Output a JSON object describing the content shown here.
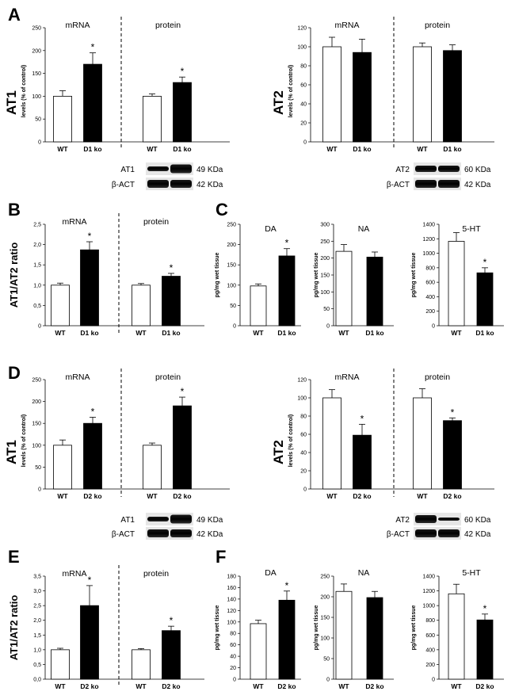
{
  "panel_labels": [
    "A",
    "B",
    "C",
    "D",
    "E",
    "F"
  ],
  "chart_data": [
    {
      "id": "A-AT1",
      "panel": "A",
      "type": "bar",
      "ylabel_main": "AT1",
      "ylabel_sub": "levels (% of control)",
      "ylim": [
        0,
        250
      ],
      "yticks": [
        "0",
        "50",
        "100",
        "150",
        "200",
        "250"
      ],
      "groups": [
        {
          "title": "mRNA",
          "categories": [
            "WT",
            "D1 ko"
          ],
          "values": [
            100,
            170
          ],
          "errors": [
            12,
            25
          ],
          "significant": [
            false,
            true
          ]
        },
        {
          "title": "protein",
          "categories": [
            "WT",
            "D1 ko"
          ],
          "values": [
            100,
            130
          ],
          "errors": [
            5,
            12
          ],
          "significant": [
            false,
            true
          ]
        }
      ]
    },
    {
      "id": "A-AT2",
      "panel": "A",
      "type": "bar",
      "ylabel_main": "AT2",
      "ylabel_sub": "levels (% of control)",
      "ylim": [
        0,
        120
      ],
      "yticks": [
        "0",
        "20",
        "40",
        "60",
        "80",
        "100",
        "120"
      ],
      "groups": [
        {
          "title": "mRNA",
          "categories": [
            "WT",
            "D1 ko"
          ],
          "values": [
            100,
            94
          ],
          "errors": [
            10,
            14
          ],
          "significant": [
            false,
            false
          ]
        },
        {
          "title": "protein",
          "categories": [
            "WT",
            "D1 ko"
          ],
          "values": [
            100,
            96
          ],
          "errors": [
            4,
            6
          ],
          "significant": [
            false,
            false
          ]
        }
      ]
    },
    {
      "id": "B",
      "panel": "B",
      "type": "bar",
      "ylabel_main": "AT1/AT2 ratio",
      "ylabel_sub": "",
      "ylim": [
        0,
        2.5
      ],
      "yticks": [
        "0",
        "0,5",
        "1,0",
        "1,5",
        "2,0",
        "2,5"
      ],
      "groups": [
        {
          "title": "mRNA",
          "categories": [
            "WT",
            "D1 ko"
          ],
          "values": [
            1.0,
            1.87
          ],
          "errors": [
            0.05,
            0.2
          ],
          "significant": [
            false,
            true
          ]
        },
        {
          "title": "protein",
          "categories": [
            "WT",
            "D1 ko"
          ],
          "values": [
            1.0,
            1.22
          ],
          "errors": [
            0.04,
            0.07
          ],
          "significant": [
            false,
            true
          ]
        }
      ]
    },
    {
      "id": "C-DA",
      "panel": "C",
      "type": "bar",
      "title": "DA",
      "ylabel_main": "",
      "ylabel_sub": "pg/mg wet tissue",
      "ylim": [
        0,
        250
      ],
      "yticks": [
        "0",
        "50",
        "100",
        "150",
        "200",
        "250"
      ],
      "groups": [
        {
          "title": "",
          "categories": [
            "WT",
            "D1 ko"
          ],
          "values": [
            98,
            172
          ],
          "errors": [
            5,
            18
          ],
          "significant": [
            false,
            true
          ]
        }
      ]
    },
    {
      "id": "C-NA",
      "panel": "C",
      "type": "bar",
      "title": "NA",
      "ylabel_main": "",
      "ylabel_sub": "pg/mg wet tissue",
      "ylim": [
        0,
        300
      ],
      "yticks": [
        "0",
        "50",
        "100",
        "150",
        "200",
        "250",
        "300"
      ],
      "groups": [
        {
          "title": "",
          "categories": [
            "WT",
            "D1 ko"
          ],
          "values": [
            220,
            203
          ],
          "errors": [
            20,
            15
          ],
          "significant": [
            false,
            false
          ]
        }
      ]
    },
    {
      "id": "C-5HT",
      "panel": "C",
      "type": "bar",
      "title": "5-HT",
      "ylabel_main": "",
      "ylabel_sub": "pg/mg wet tissue",
      "ylim": [
        0,
        1400
      ],
      "yticks": [
        "0",
        "200",
        "400",
        "600",
        "800",
        "1000",
        "1200",
        "1400"
      ],
      "groups": [
        {
          "title": "",
          "categories": [
            "WT",
            "D1 ko"
          ],
          "values": [
            1165,
            730
          ],
          "errors": [
            120,
            70
          ],
          "significant": [
            false,
            true
          ]
        }
      ]
    },
    {
      "id": "D-AT1",
      "panel": "D",
      "type": "bar",
      "ylabel_main": "AT1",
      "ylabel_sub": "levels (% of control)",
      "ylim": [
        0,
        250
      ],
      "yticks": [
        "0",
        "50",
        "100",
        "150",
        "200",
        "250"
      ],
      "groups": [
        {
          "title": "mRNA",
          "categories": [
            "WT",
            "D2 ko"
          ],
          "values": [
            100,
            150
          ],
          "errors": [
            12,
            14
          ],
          "significant": [
            false,
            true
          ]
        },
        {
          "title": "protein",
          "categories": [
            "WT",
            "D2 ko"
          ],
          "values": [
            100,
            190
          ],
          "errors": [
            5,
            20
          ],
          "significant": [
            false,
            true
          ]
        }
      ]
    },
    {
      "id": "D-AT2",
      "panel": "D",
      "type": "bar",
      "ylabel_main": "AT2",
      "ylabel_sub": "levels (% of control)",
      "ylim": [
        0,
        120
      ],
      "yticks": [
        "0",
        "20",
        "40",
        "60",
        "80",
        "100",
        "120"
      ],
      "groups": [
        {
          "title": "mRNA",
          "categories": [
            "WT",
            "D2 ko"
          ],
          "values": [
            100,
            59
          ],
          "errors": [
            9,
            12
          ],
          "significant": [
            false,
            true
          ]
        },
        {
          "title": "protein",
          "categories": [
            "WT",
            "D2 ko"
          ],
          "values": [
            100,
            75
          ],
          "errors": [
            10,
            3
          ],
          "significant": [
            false,
            true
          ]
        }
      ]
    },
    {
      "id": "E",
      "panel": "E",
      "type": "bar",
      "ylabel_main": "AT1/AT2 ratio",
      "ylabel_sub": "",
      "ylim": [
        0,
        3.5
      ],
      "yticks": [
        "0,0",
        "0,5",
        "1,0",
        "1,5",
        "2,0",
        "2,5",
        "3,0",
        "3,5"
      ],
      "groups": [
        {
          "title": "mRNA",
          "categories": [
            "WT",
            "D2 ko"
          ],
          "values": [
            1.0,
            2.5
          ],
          "errors": [
            0.05,
            0.68
          ],
          "significant": [
            false,
            true
          ]
        },
        {
          "title": "protein",
          "categories": [
            "WT",
            "D2 ko"
          ],
          "values": [
            1.0,
            1.65
          ],
          "errors": [
            0.04,
            0.15
          ],
          "significant": [
            false,
            true
          ]
        }
      ]
    },
    {
      "id": "F-DA",
      "panel": "F",
      "type": "bar",
      "title": "DA",
      "ylabel_main": "",
      "ylabel_sub": "pg/mg wet tissue",
      "ylim": [
        0,
        180
      ],
      "yticks": [
        "0",
        "20",
        "40",
        "60",
        "80",
        "100",
        "120",
        "140",
        "160",
        "180"
      ],
      "groups": [
        {
          "title": "",
          "categories": [
            "WT",
            "D2 ko"
          ],
          "values": [
            97,
            138
          ],
          "errors": [
            6,
            16
          ],
          "significant": [
            false,
            true
          ]
        }
      ]
    },
    {
      "id": "F-NA",
      "panel": "F",
      "type": "bar",
      "title": "NA",
      "ylabel_main": "",
      "ylabel_sub": "pg/mg wet tissue",
      "ylim": [
        0,
        250
      ],
      "yticks": [
        "0",
        "50",
        "100",
        "150",
        "200",
        "250"
      ],
      "groups": [
        {
          "title": "",
          "categories": [
            "WT",
            "D2 ko"
          ],
          "values": [
            213,
            198
          ],
          "errors": [
            18,
            15
          ],
          "significant": [
            false,
            false
          ]
        }
      ]
    },
    {
      "id": "F-5HT",
      "panel": "F",
      "type": "bar",
      "title": "5-HT",
      "ylabel_main": "",
      "ylabel_sub": "pg/mg wet tissue",
      "ylim": [
        0,
        1400
      ],
      "yticks": [
        "0",
        "200",
        "400",
        "600",
        "800",
        "1000",
        "1200",
        "1400"
      ],
      "groups": [
        {
          "title": "",
          "categories": [
            "WT",
            "D2 ko"
          ],
          "values": [
            1160,
            805
          ],
          "errors": [
            130,
            80
          ],
          "significant": [
            false,
            true
          ]
        }
      ]
    }
  ],
  "blots": [
    {
      "id": "blot-A-AT1",
      "target": "AT1",
      "target_kda": "49 KDa",
      "loading": "β-ACT",
      "loading_kda": "42 KDa",
      "pattern": "increase"
    },
    {
      "id": "blot-A-AT2",
      "target": "AT2",
      "target_kda": "60 KDa",
      "loading": "β-ACT",
      "loading_kda": "42 KDa",
      "pattern": "equal"
    },
    {
      "id": "blot-D-AT1",
      "target": "AT1",
      "target_kda": "49 KDa",
      "loading": "β-ACT",
      "loading_kda": "42 KDa",
      "pattern": "increase"
    },
    {
      "id": "blot-D-AT2",
      "target": "AT2",
      "target_kda": "60 KDa",
      "loading": "β-ACT",
      "loading_kda": "42 KDa",
      "pattern": "decrease"
    }
  ],
  "significance_marker": "*",
  "colors": {
    "control_fill": "#ffffff",
    "ko_fill": "#000000",
    "axis": "#000000"
  }
}
